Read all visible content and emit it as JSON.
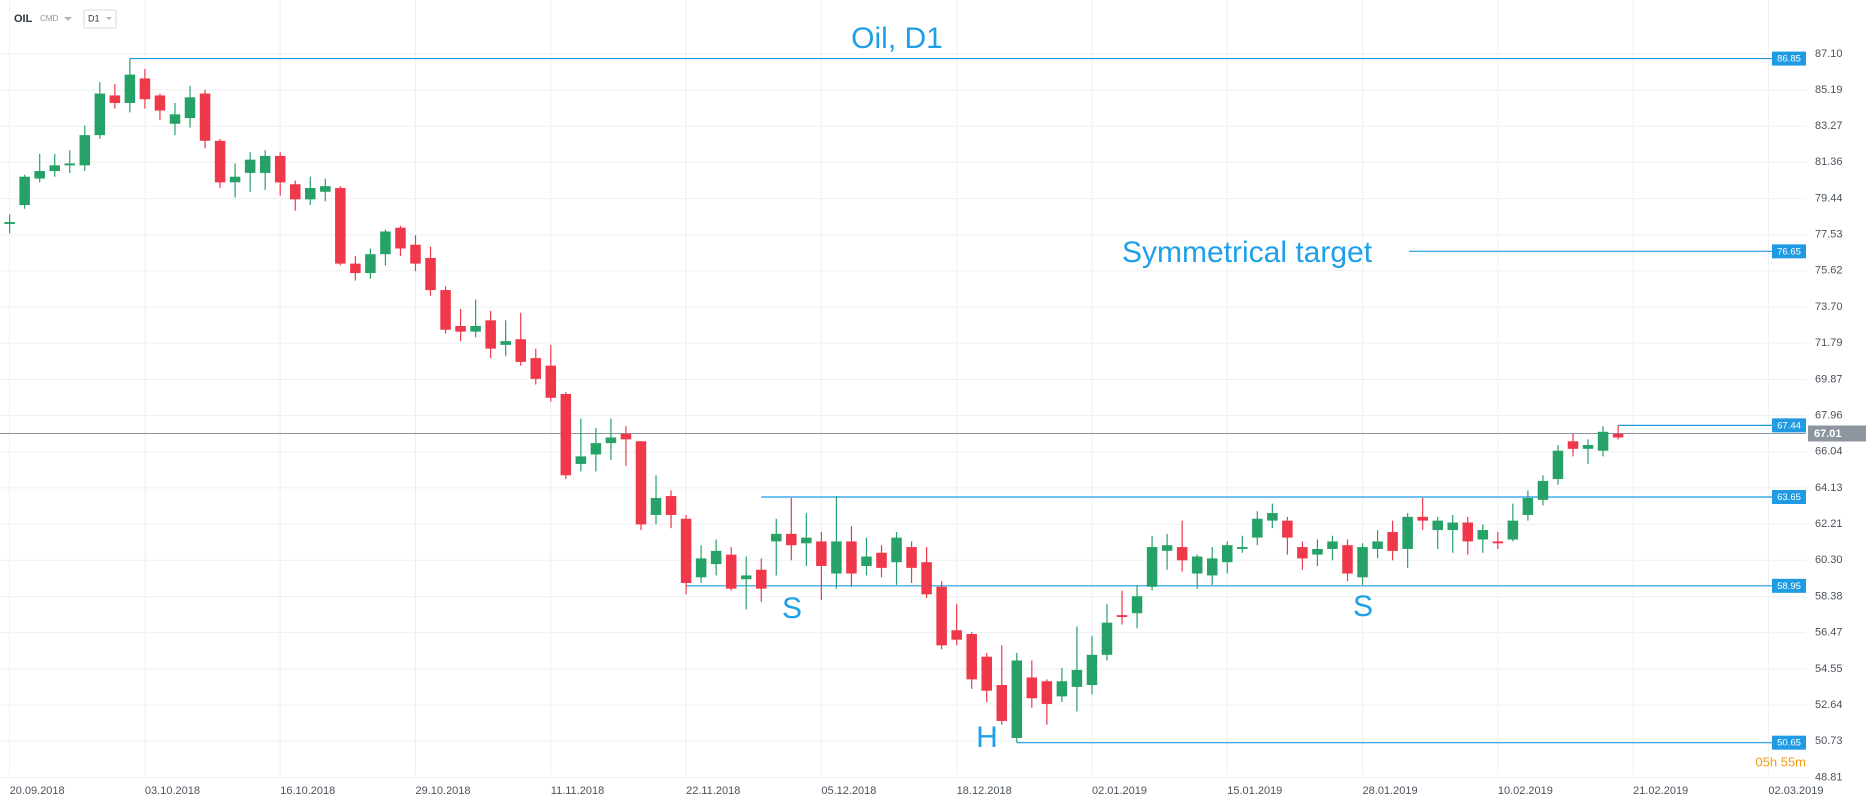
{
  "chart_data": {
    "type": "candlestick",
    "title": "Oil, D1",
    "symbol": "OIL",
    "market": "CMD",
    "timeframe": "D1",
    "countdown": "05h 55m",
    "up_color": "#26a269",
    "down_color": "#f0384b",
    "level_color": "#1e9be3",
    "current_color": "#8d969f",
    "grid": true,
    "open": [
      78.1,
      79.1,
      80.5,
      80.9,
      81.2,
      81.2,
      82.8,
      84.9,
      84.5,
      85.8,
      84.9,
      83.4,
      83.7,
      85.0,
      82.5,
      80.3,
      80.8,
      80.8,
      81.7,
      80.2,
      79.4,
      79.8,
      80.0,
      76.0,
      75.5,
      76.5,
      77.9,
      77.0,
      76.3,
      74.6,
      72.7,
      72.4,
      73.0,
      71.7,
      72.0,
      71.0,
      70.6,
      69.1,
      65.4,
      65.9,
      66.5,
      67.0,
      66.6,
      62.7,
      63.7,
      62.5,
      59.4,
      60.1,
      60.6,
      59.3,
      59.8,
      61.3,
      61.7,
      61.2,
      61.3,
      59.6,
      61.3,
      60.0,
      60.7,
      60.2,
      61.0,
      60.2,
      58.9,
      56.6,
      56.4,
      55.2,
      53.7,
      50.9,
      54.1,
      53.9,
      53.1,
      53.6,
      53.7,
      55.3,
      57.4,
      57.5,
      58.9,
      60.8,
      61.0,
      59.6,
      59.5,
      60.2,
      60.9,
      61.5,
      62.4,
      62.4,
      61.0,
      60.6,
      60.9,
      61.1,
      59.4,
      60.9,
      61.8,
      60.9,
      62.6,
      61.9,
      61.9,
      62.3,
      61.4,
      61.3,
      61.4,
      62.7,
      63.5,
      64.6,
      66.6,
      66.2,
      66.1,
      67.0
    ],
    "high": [
      78.6,
      80.7,
      81.8,
      81.8,
      82.0,
      83.3,
      85.6,
      85.5,
      86.85,
      86.3,
      85.0,
      84.5,
      85.4,
      85.2,
      82.6,
      81.3,
      81.9,
      82.0,
      81.9,
      80.4,
      80.6,
      80.5,
      80.1,
      76.4,
      76.8,
      77.8,
      78.0,
      77.5,
      76.9,
      74.8,
      73.6,
      74.1,
      73.5,
      73.0,
      73.4,
      71.5,
      71.7,
      69.2,
      67.8,
      67.3,
      67.8,
      67.4,
      66.6,
      64.8,
      64.0,
      62.7,
      61.1,
      61.4,
      61.0,
      60.5,
      60.4,
      62.5,
      63.6,
      62.8,
      61.8,
      63.7,
      62.1,
      61.5,
      61.1,
      61.8,
      61.3,
      61.0,
      59.2,
      58.0,
      56.5,
      55.4,
      55.8,
      55.4,
      55.0,
      54.0,
      54.6,
      56.8,
      56.3,
      58.0,
      58.7,
      59.0,
      61.6,
      61.7,
      62.4,
      60.6,
      61.0,
      61.3,
      61.6,
      62.9,
      63.3,
      62.6,
      61.3,
      61.4,
      61.6,
      61.4,
      61.2,
      61.9,
      62.4,
      62.8,
      63.6,
      62.6,
      62.7,
      62.6,
      62.2,
      61.8,
      63.3,
      64.0,
      64.8,
      66.4,
      67.0,
      66.7,
      67.4,
      67.44
    ],
    "low": [
      77.6,
      78.9,
      80.3,
      80.6,
      80.8,
      80.9,
      82.6,
      84.2,
      84.0,
      84.2,
      83.6,
      82.8,
      83.2,
      82.1,
      80.0,
      79.5,
      79.8,
      79.9,
      79.6,
      78.8,
      79.1,
      79.3,
      75.9,
      75.1,
      75.2,
      75.9,
      76.4,
      75.6,
      74.3,
      72.3,
      71.9,
      72.1,
      71.0,
      71.1,
      70.6,
      69.6,
      68.7,
      64.6,
      65.0,
      65.0,
      65.6,
      65.3,
      61.9,
      62.2,
      62.0,
      58.5,
      59.1,
      59.5,
      58.7,
      57.7,
      58.1,
      59.5,
      60.3,
      60.0,
      58.2,
      58.8,
      58.9,
      59.5,
      59.4,
      59.0,
      59.1,
      58.3,
      55.6,
      55.8,
      53.5,
      52.8,
      51.6,
      50.65,
      52.5,
      51.6,
      52.8,
      52.3,
      53.2,
      55.0,
      56.9,
      56.7,
      58.7,
      59.8,
      59.7,
      58.8,
      59.0,
      59.6,
      60.7,
      61.1,
      62.0,
      60.6,
      59.8,
      60.0,
      60.3,
      59.2,
      59.0,
      60.4,
      60.3,
      59.9,
      61.9,
      60.9,
      60.7,
      60.6,
      60.7,
      60.9,
      61.3,
      62.4,
      63.2,
      64.3,
      65.8,
      65.4,
      65.8,
      66.7
    ],
    "close": [
      78.2,
      80.6,
      80.9,
      81.2,
      81.3,
      82.8,
      85.0,
      84.5,
      86.0,
      84.7,
      84.1,
      83.9,
      84.8,
      82.5,
      80.3,
      80.6,
      81.5,
      81.7,
      80.3,
      79.4,
      80.0,
      80.1,
      76.0,
      75.5,
      76.5,
      77.7,
      76.8,
      76.0,
      74.6,
      72.5,
      72.4,
      72.7,
      71.5,
      71.9,
      70.8,
      69.9,
      68.9,
      64.8,
      65.8,
      66.5,
      66.8,
      66.7,
      62.2,
      63.6,
      62.7,
      59.1,
      60.4,
      60.8,
      58.8,
      59.5,
      58.8,
      61.7,
      61.1,
      61.5,
      60.0,
      61.3,
      59.6,
      60.5,
      59.9,
      61.5,
      59.9,
      58.5,
      55.8,
      56.1,
      54.0,
      53.4,
      51.8,
      55.0,
      53.0,
      52.7,
      53.9,
      54.5,
      55.3,
      57.0,
      57.3,
      58.4,
      61.0,
      61.1,
      60.3,
      60.5,
      60.4,
      61.1,
      61.0,
      62.5,
      62.8,
      61.5,
      60.4,
      60.9,
      61.3,
      59.6,
      61.0,
      61.3,
      60.8,
      62.6,
      62.4,
      62.4,
      62.3,
      61.3,
      61.9,
      61.2,
      62.4,
      63.6,
      64.5,
      66.1,
      66.2,
      66.4,
      67.1,
      66.8
    ],
    "levels": [
      86.85,
      76.65,
      67.44,
      63.65,
      58.95,
      50.65
    ],
    "current": 67.01,
    "annotations": [
      "Symmetrical target",
      "S",
      "S",
      "H"
    ],
    "ylim": [
      48.41,
      89.95
    ],
    "yticks": [
      {
        "value": 87.1,
        "label": "87.10"
      },
      85.19,
      83.27,
      81.36,
      79.44,
      77.53,
      75.62,
      {
        "value": 73.7,
        "label": "73.70"
      },
      71.79,
      69.87,
      67.96,
      66.04,
      64.13,
      62.21,
      {
        "value": 60.3,
        "label": "60.30"
      },
      58.38,
      56.47,
      54.55,
      52.64,
      50.73,
      48.81
    ],
    "xlim": [
      -0.64,
      119.5
    ],
    "xticks": [
      {
        "value": 0,
        "label": "20.09.2018"
      },
      {
        "value": 9,
        "label": "03.10.2018"
      },
      {
        "value": 18,
        "label": "16.10.2018"
      },
      {
        "value": 27,
        "label": "29.10.2018"
      },
      {
        "value": 36,
        "label": "11.11.2018"
      },
      {
        "value": 45,
        "label": "22.11.2018"
      },
      {
        "value": 54,
        "label": "05.12.2018"
      },
      {
        "value": 63,
        "label": "18.12.2018"
      },
      {
        "value": 72,
        "label": "02.01.2019"
      },
      {
        "value": 81,
        "label": "15.01.2019"
      },
      {
        "value": 90,
        "label": "28.01.2019"
      },
      {
        "value": 99,
        "label": "10.02.2019"
      },
      {
        "value": 108,
        "label": "21.02.2019"
      },
      {
        "value": 117,
        "label": "02.03.2019"
      }
    ]
  }
}
